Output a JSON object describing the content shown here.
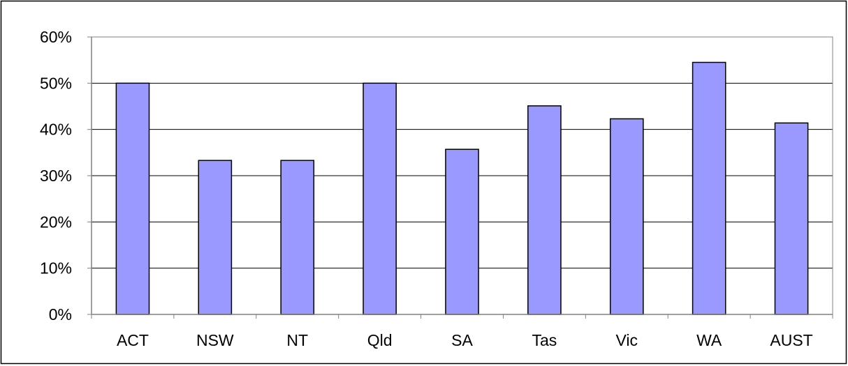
{
  "chart_data": {
    "type": "bar",
    "title": "",
    "xlabel": "",
    "ylabel": "",
    "categories": [
      "ACT",
      "NSW",
      "NT",
      "Qld",
      "SA",
      "Tas",
      "Vic",
      "WA",
      "AUST"
    ],
    "values": [
      50.0,
      33.3,
      33.3,
      50.0,
      35.7,
      45.1,
      42.3,
      54.5,
      41.4
    ],
    "ylim": [
      0,
      60
    ],
    "yticks": [
      0,
      10,
      20,
      30,
      40,
      50,
      60
    ],
    "ytick_labels": [
      "0%",
      "10%",
      "20%",
      "30%",
      "40%",
      "50%",
      "60%"
    ],
    "grid": true,
    "legend": "none",
    "colors": {
      "bar_fill": "#9999ff",
      "bar_stroke": "#000000",
      "gridline": "#000000",
      "axis": "#808080",
      "frame": "#000000"
    }
  }
}
